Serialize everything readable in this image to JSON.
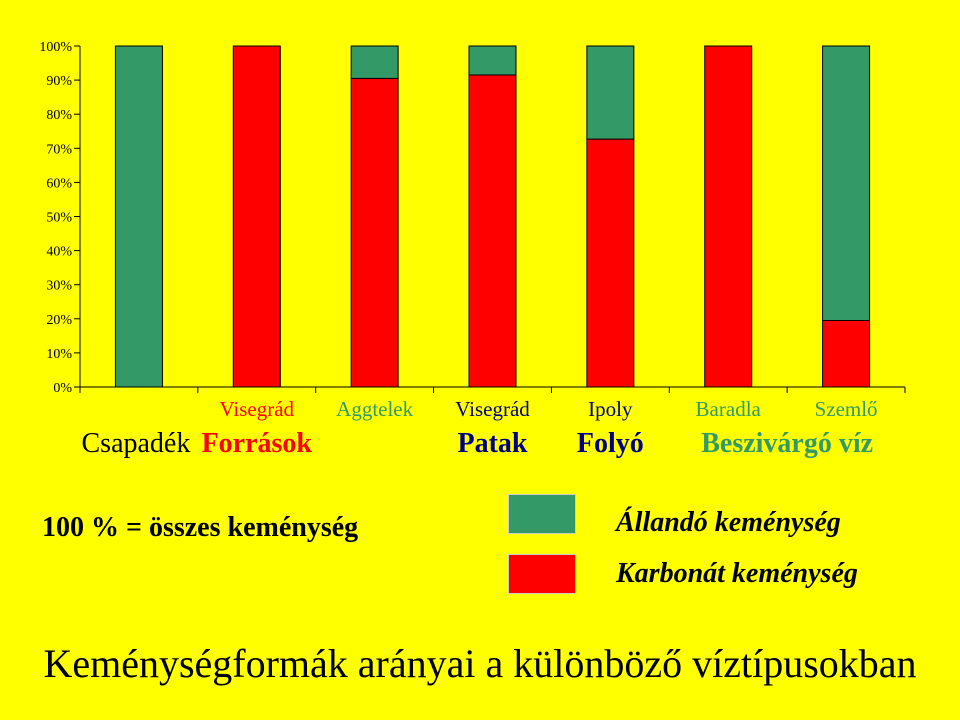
{
  "chart_data": {
    "type": "bar",
    "stacked": true,
    "percent": true,
    "categories": [
      "Csapadék",
      "Visegrád",
      "Aggtelek",
      "Visegrád",
      "Ipoly",
      "Baradla",
      "Szemlő"
    ],
    "series": [
      {
        "name": "Karbonát keménység",
        "color": "#ff0000",
        "values": [
          0,
          100,
          90.5,
          91.5,
          72.7,
          100,
          19.5
        ]
      },
      {
        "name": "Állandó keménység",
        "color": "#339966",
        "values": [
          100,
          0,
          9.5,
          8.5,
          27.3,
          0,
          80.5
        ]
      }
    ],
    "ylim": [
      0,
      100
    ],
    "y_ticks": [
      "0%",
      "10%",
      "20%",
      "30%",
      "40%",
      "50%",
      "60%",
      "70%",
      "80%",
      "90%",
      "100%"
    ],
    "grid": false,
    "group_labels": [
      {
        "label": "Csapadék",
        "color": "#000000"
      },
      {
        "label": "Források",
        "color": "#ff0000"
      },
      {
        "label": "Patak",
        "color": "#000080"
      },
      {
        "label": "Folyó",
        "color": "#000080"
      },
      {
        "label": "Beszivárgó víz",
        "color": "#339966"
      }
    ],
    "top_label_colors": [
      "",
      "#ff0000",
      "#339966",
      "#000080",
      "#000080",
      "#339966",
      "#339966"
    ]
  },
  "note": "100 % = összes keménység",
  "legend": [
    {
      "label": "Állandó keménység",
      "color": "#339966"
    },
    {
      "label": "Karbonát keménység",
      "color": "#ff0000"
    }
  ],
  "footer_title": "Keménységformák arányai a különböző víztípusokban"
}
